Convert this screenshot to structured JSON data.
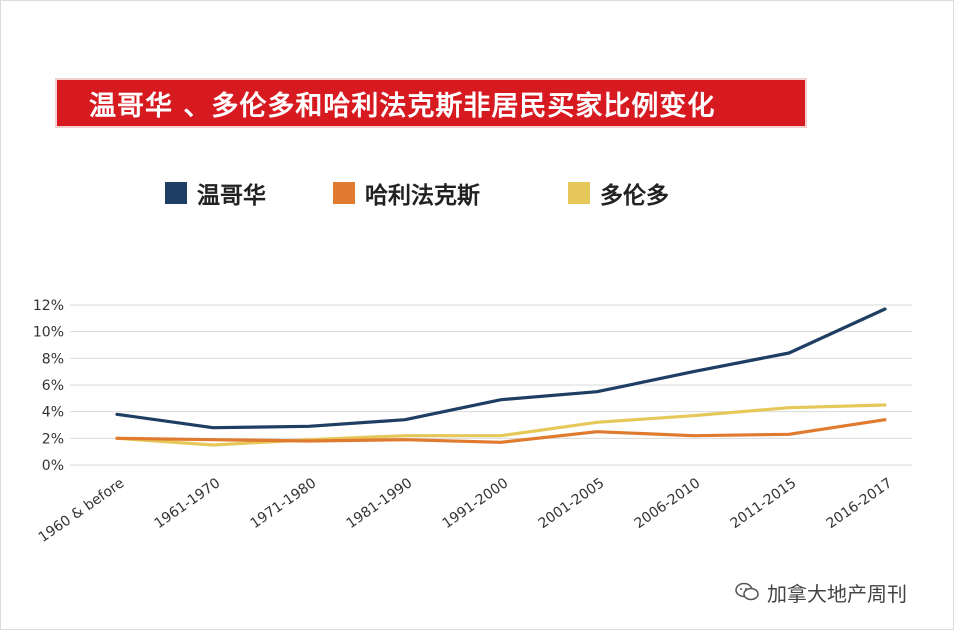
{
  "chart_data": {
    "type": "line",
    "title": "温哥华 、多伦多和哈利法克斯非居民买家比例变化",
    "categories": [
      "1960 & before",
      "1961-1970",
      "1971-1980",
      "1981-1990",
      "1991-2000",
      "2001-2005",
      "2006-2010",
      "2011-2015",
      "2016-2017"
    ],
    "y_ticks": [
      "0%",
      "2%",
      "4%",
      "6%",
      "8%",
      "10%",
      "12%"
    ],
    "ylim": [
      0,
      12
    ],
    "grid": true,
    "legend_position": "top",
    "series": [
      {
        "name": "温哥华",
        "color": "#1f3e63",
        "values": [
          3.8,
          2.8,
          2.9,
          3.4,
          4.9,
          5.5,
          7.0,
          8.4,
          11.7
        ]
      },
      {
        "name": "哈利法克斯",
        "color": "#e07a2e",
        "values": [
          2.0,
          1.9,
          1.8,
          1.9,
          1.7,
          2.5,
          2.2,
          2.3,
          3.4
        ]
      },
      {
        "name": "多伦多",
        "color": "#e6c85a",
        "values": [
          2.0,
          1.5,
          1.9,
          2.2,
          2.2,
          3.2,
          3.7,
          4.3,
          4.5
        ]
      }
    ]
  },
  "watermark": {
    "text": "加拿大地产周刊",
    "icon": "wechat-icon"
  }
}
